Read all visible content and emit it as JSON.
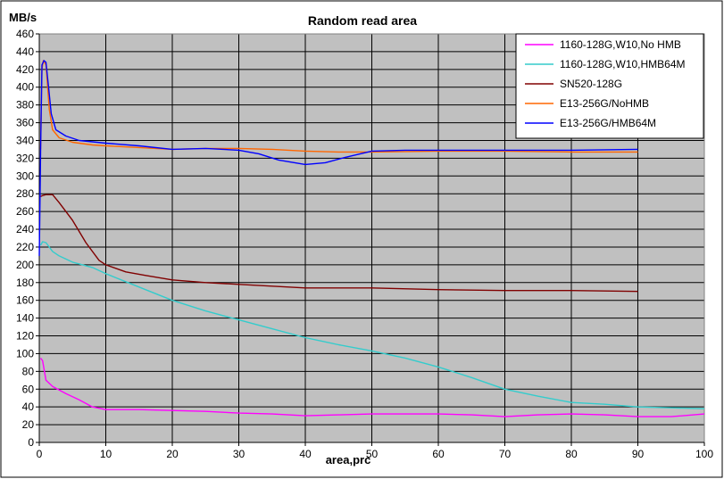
{
  "chart_data": {
    "type": "line",
    "title": "Random read area",
    "xlabel": "area,prc",
    "ylabel": "MB/s",
    "xlim": [
      0,
      100
    ],
    "ylim": [
      0,
      460
    ],
    "x_ticks": [
      0,
      10,
      20,
      30,
      40,
      50,
      60,
      70,
      80,
      90,
      100
    ],
    "y_ticks": [
      0,
      20,
      40,
      60,
      80,
      100,
      120,
      140,
      160,
      180,
      200,
      220,
      240,
      260,
      280,
      300,
      320,
      340,
      360,
      380,
      400,
      420,
      440,
      460
    ],
    "grid": true,
    "legend_position": "top-right",
    "plot_background": "#c0c0c0",
    "series": [
      {
        "name": "1160-128G,W10,No HMB",
        "color": "#ff00ff",
        "points": [
          [
            0.2,
            95
          ],
          [
            0.5,
            92
          ],
          [
            1,
            70
          ],
          [
            2,
            63
          ],
          [
            4,
            55
          ],
          [
            6,
            48
          ],
          [
            8,
            40
          ],
          [
            10,
            37
          ],
          [
            15,
            37
          ],
          [
            20,
            36
          ],
          [
            25,
            35
          ],
          [
            30,
            33
          ],
          [
            35,
            32
          ],
          [
            40,
            30
          ],
          [
            45,
            31
          ],
          [
            50,
            32
          ],
          [
            55,
            32
          ],
          [
            60,
            32
          ],
          [
            65,
            31
          ],
          [
            70,
            29
          ],
          [
            75,
            31
          ],
          [
            80,
            32
          ],
          [
            85,
            31
          ],
          [
            90,
            29
          ],
          [
            95,
            29
          ],
          [
            100,
            32
          ]
        ]
      },
      {
        "name": "1160-128G,W10,HMB64M",
        "color": "#33cccc",
        "points": [
          [
            0.2,
            222
          ],
          [
            0.5,
            226
          ],
          [
            1,
            225
          ],
          [
            2,
            215
          ],
          [
            3,
            210
          ],
          [
            5,
            203
          ],
          [
            8,
            197
          ],
          [
            10,
            190
          ],
          [
            15,
            175
          ],
          [
            20,
            160
          ],
          [
            25,
            148
          ],
          [
            30,
            138
          ],
          [
            35,
            128
          ],
          [
            40,
            118
          ],
          [
            45,
            110
          ],
          [
            50,
            103
          ],
          [
            55,
            95
          ],
          [
            60,
            85
          ],
          [
            65,
            73
          ],
          [
            70,
            60
          ],
          [
            75,
            52
          ],
          [
            80,
            45
          ],
          [
            85,
            43
          ],
          [
            90,
            40
          ],
          [
            95,
            39
          ],
          [
            100,
            38
          ]
        ]
      },
      {
        "name": "SN520-128G",
        "color": "#800000",
        "points": [
          [
            0.2,
            277
          ],
          [
            0.5,
            278
          ],
          [
            1,
            279
          ],
          [
            2,
            279
          ],
          [
            3,
            270
          ],
          [
            5,
            250
          ],
          [
            7,
            225
          ],
          [
            9,
            205
          ],
          [
            10,
            200
          ],
          [
            13,
            192
          ],
          [
            16,
            188
          ],
          [
            20,
            183
          ],
          [
            25,
            180
          ],
          [
            30,
            178
          ],
          [
            35,
            176
          ],
          [
            40,
            174
          ],
          [
            50,
            174
          ],
          [
            60,
            172
          ],
          [
            70,
            171
          ],
          [
            80,
            171
          ],
          [
            90,
            170
          ]
        ]
      },
      {
        "name": "E13-256G/NoHMB",
        "color": "#ff6600",
        "points": [
          [
            0.2,
            330
          ],
          [
            0.4,
            420
          ],
          [
            0.6,
            430
          ],
          [
            1,
            425
          ],
          [
            1.5,
            375
          ],
          [
            2,
            352
          ],
          [
            3,
            343
          ],
          [
            5,
            338
          ],
          [
            8,
            335
          ],
          [
            10,
            334
          ],
          [
            15,
            332
          ],
          [
            20,
            330
          ],
          [
            25,
            331
          ],
          [
            30,
            331
          ],
          [
            35,
            330
          ],
          [
            40,
            328
          ],
          [
            45,
            327
          ],
          [
            50,
            327
          ],
          [
            60,
            328
          ],
          [
            70,
            328
          ],
          [
            80,
            327
          ],
          [
            90,
            327
          ]
        ]
      },
      {
        "name": "E13-256G/HMB64M",
        "color": "#0000ff",
        "points": [
          [
            0,
            210
          ],
          [
            0.2,
            330
          ],
          [
            0.4,
            425
          ],
          [
            0.7,
            430
          ],
          [
            1,
            428
          ],
          [
            1.4,
            400
          ],
          [
            1.8,
            370
          ],
          [
            2.5,
            352
          ],
          [
            4,
            345
          ],
          [
            6,
            340
          ],
          [
            10,
            337
          ],
          [
            15,
            334
          ],
          [
            20,
            330
          ],
          [
            25,
            331
          ],
          [
            30,
            329
          ],
          [
            33,
            325
          ],
          [
            36,
            318
          ],
          [
            40,
            313
          ],
          [
            43,
            315
          ],
          [
            46,
            321
          ],
          [
            50,
            328
          ],
          [
            55,
            329
          ],
          [
            60,
            329
          ],
          [
            70,
            329
          ],
          [
            80,
            329
          ],
          [
            90,
            330
          ]
        ]
      }
    ]
  }
}
